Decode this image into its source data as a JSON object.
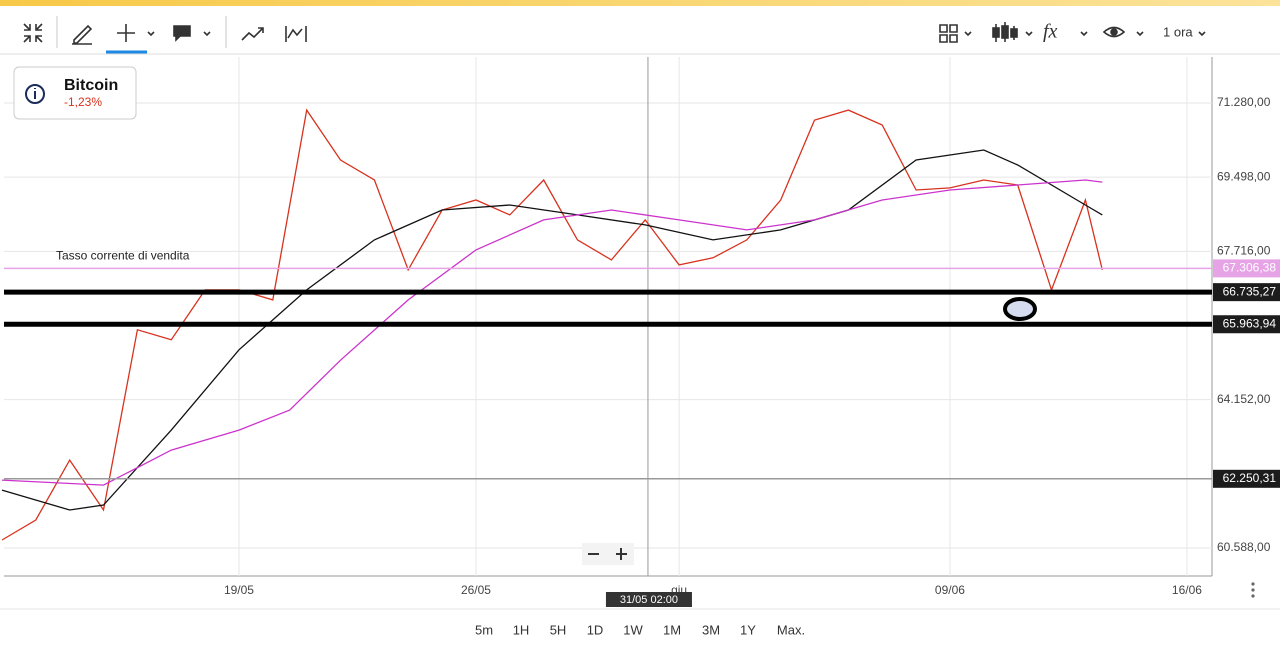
{
  "toolbar": {
    "interval": "1 ora"
  },
  "info": {
    "name": "Bitcoin",
    "change": "-1,23%"
  },
  "range_buttons": [
    "5m",
    "1H",
    "5H",
    "1D",
    "1W",
    "1M",
    "3M",
    "1Y",
    "Max."
  ],
  "chart_data": {
    "type": "line",
    "xlim": [
      12.06,
      47.74
    ],
    "ylim": [
      59915,
      72385
    ],
    "xticks": [
      {
        "value": 19,
        "label": "19/05"
      },
      {
        "value": 26,
        "label": "26/05"
      },
      {
        "value": 32,
        "label": "giu"
      },
      {
        "value": 40,
        "label": "09/06"
      },
      {
        "value": 47,
        "label": "16/06"
      }
    ],
    "yticks": [
      {
        "value": 60588,
        "label": "60.588,00"
      },
      {
        "value": 64152,
        "label": "64.152,00"
      },
      {
        "value": 67716,
        "label": "67.716,00"
      },
      {
        "value": 69498,
        "label": "69.498,00"
      },
      {
        "value": 71280,
        "label": "71.280,00"
      }
    ],
    "grid": true,
    "series": [
      {
        "color": "#d8321e",
        "x": [
          12,
          13,
          14,
          15,
          16,
          17,
          18,
          19,
          20,
          21,
          22,
          23,
          24,
          25,
          26,
          27,
          28,
          29,
          30,
          31,
          32,
          33,
          34,
          35,
          36,
          37,
          38,
          39,
          40,
          41,
          42,
          43,
          44,
          44.5
        ],
        "values": [
          60780,
          61260,
          62700,
          61500,
          65830,
          65590,
          66790,
          66790,
          66550,
          71110,
          69910,
          69430,
          67270,
          68710,
          68950,
          68590,
          69430,
          67990,
          67510,
          68470,
          67390,
          67560,
          67990,
          68950,
          70870,
          71110,
          70750,
          69190,
          69240,
          69430,
          69310,
          66790,
          68950,
          67270
        ]
      },
      {
        "color": "#111111",
        "x": [
          12,
          14,
          15,
          17,
          19,
          21,
          23,
          25,
          27,
          29,
          31,
          33,
          35,
          37,
          39,
          41,
          42,
          44,
          44.5
        ],
        "values": [
          61980,
          61500,
          61620,
          63420,
          65350,
          66790,
          67990,
          68710,
          68830,
          68590,
          68350,
          67990,
          68230,
          68710,
          69910,
          70150,
          69790,
          68830,
          68590
        ]
      },
      {
        "color": "#cc33cc",
        "x": [
          12,
          15,
          17,
          19,
          20.5,
          22,
          24,
          26,
          28,
          30,
          32,
          34,
          36,
          38,
          40,
          42,
          44,
          44.5
        ],
        "values": [
          62220,
          62100,
          62940,
          63420,
          63900,
          65100,
          66550,
          67750,
          68470,
          68710,
          68470,
          68230,
          68470,
          68950,
          69190,
          69310,
          69430,
          69380
        ]
      }
    ],
    "price_lines": [
      {
        "value": 67306.38,
        "label": "67.306,38",
        "name": "Tasso corrente di vendita",
        "color": "#e6a3e6",
        "style": "thin"
      },
      {
        "value": 66735.27,
        "label": "66.735,27",
        "color": "#000000",
        "style": "thick"
      },
      {
        "value": 65963.94,
        "label": "65.963,94",
        "color": "#000000",
        "style": "thick"
      },
      {
        "value": 62250.31,
        "label": "62.250,31",
        "color": "#999999",
        "style": "thin"
      }
    ],
    "crosshair": {
      "x": 31.08,
      "label": "31/05 02:00"
    }
  }
}
